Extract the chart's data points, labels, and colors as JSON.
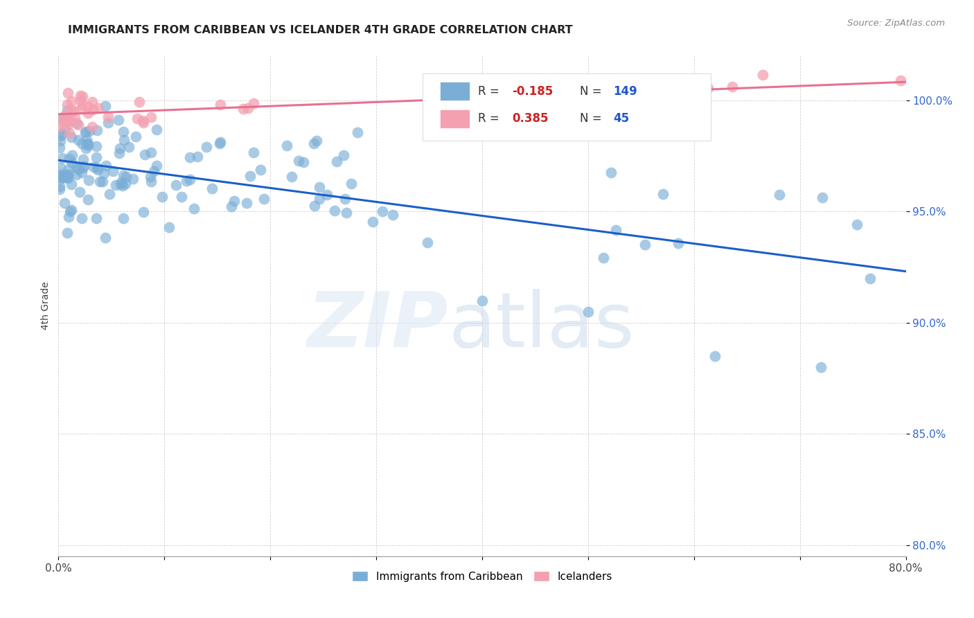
{
  "title": "IMMIGRANTS FROM CARIBBEAN VS ICELANDER 4TH GRADE CORRELATION CHART",
  "source": "Source: ZipAtlas.com",
  "ylabel": "4th Grade",
  "y_ticks": [
    80.0,
    85.0,
    90.0,
    95.0,
    100.0
  ],
  "x_range": [
    0.0,
    80.0
  ],
  "y_range": [
    79.5,
    102.0
  ],
  "blue_color": "#7aaed6",
  "pink_color": "#f4a0b0",
  "trendline_blue": "#1a5fc8",
  "trendline_pink": "#e87090",
  "blue_label": "Immigrants from Caribbean",
  "pink_label": "Icelanders",
  "r_blue": "-0.185",
  "n_blue": "149",
  "r_pink": "0.385",
  "n_pink": "45"
}
